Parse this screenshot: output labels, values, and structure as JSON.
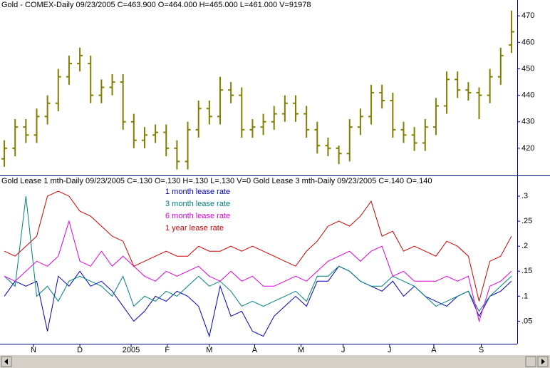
{
  "chart_data": [
    {
      "type": "ohlc",
      "title": "Gold - COMEX-Daily   09/23/2005   C=463.900   O=464.000   H=465.000   L=461.000   V=91978",
      "color": "#808000",
      "xlim": [
        -0.4,
        47.4
      ],
      "ylim": [
        410,
        476
      ],
      "yticks": [
        420,
        430,
        440,
        450,
        460,
        470
      ],
      "open": [
        416,
        420,
        428,
        425,
        432,
        437,
        447,
        452,
        452,
        440,
        443,
        445,
        430,
        423,
        425,
        426,
        420,
        415,
        427,
        435,
        432,
        442,
        440,
        427,
        428,
        430,
        433,
        437,
        433,
        427,
        421,
        420,
        418,
        428,
        432,
        441,
        438,
        427,
        425,
        422,
        428,
        436,
        446,
        442,
        441,
        440,
        447,
        459
      ],
      "high": [
        423,
        431,
        431,
        435,
        440,
        450,
        455,
        458,
        455,
        446,
        448,
        448,
        433,
        428,
        429,
        429,
        423,
        430,
        438,
        438,
        447,
        445,
        443,
        431,
        433,
        436,
        440,
        440,
        436,
        430,
        424,
        421,
        431,
        435,
        444,
        444,
        441,
        430,
        428,
        431,
        439,
        449,
        449,
        445,
        443,
        450,
        458,
        472
      ],
      "low": [
        413,
        417,
        422,
        422,
        429,
        434,
        444,
        449,
        437,
        437,
        440,
        427,
        420,
        420,
        422,
        417,
        412,
        412,
        424,
        429,
        429,
        437,
        424,
        424,
        425,
        427,
        430,
        430,
        424,
        418,
        417,
        414,
        415,
        425,
        429,
        435,
        424,
        422,
        419,
        419,
        425,
        433,
        439,
        438,
        431,
        437,
        444,
        456
      ],
      "close": [
        420,
        428,
        425,
        432,
        437,
        447,
        452,
        455,
        440,
        443,
        445,
        430,
        423,
        425,
        426,
        420,
        415,
        427,
        435,
        432,
        442,
        440,
        427,
        428,
        430,
        433,
        437,
        433,
        427,
        421,
        420,
        418,
        428,
        432,
        441,
        438,
        427,
        425,
        422,
        428,
        436,
        446,
        442,
        441,
        440,
        447,
        455,
        464
      ]
    },
    {
      "type": "line",
      "title": "Gold Lease 1 mth-Daily   09/23/2005   C=.130   O=.130   H=.130   L=.130   V=0   Gold Lease 3 mth-Daily   09/23/2005   C=.140   O=.140",
      "xlim": [
        -0.4,
        47.4
      ],
      "ylim": [
        0.005,
        0.34
      ],
      "yticks": [
        {
          "value": 0.05,
          "label": ".05"
        },
        {
          "value": 0.1,
          "label": ".1"
        },
        {
          "value": 0.15,
          "label": ".15"
        },
        {
          "value": 0.2,
          "label": ".2"
        },
        {
          "value": 0.25,
          "label": ".25"
        },
        {
          "value": 0.3,
          "label": ".3"
        }
      ],
      "xticks": [
        {
          "value": 2.7,
          "label": "N"
        },
        {
          "value": 7.0,
          "label": "D"
        },
        {
          "value": 11.75,
          "label": "2005"
        },
        {
          "value": 15.1,
          "label": "F"
        },
        {
          "value": 19.0,
          "label": "M"
        },
        {
          "value": 23.2,
          "label": "A"
        },
        {
          "value": 27.5,
          "label": "M"
        },
        {
          "value": 31.4,
          "label": "J"
        },
        {
          "value": 35.7,
          "label": "J"
        },
        {
          "value": 39.8,
          "label": "A"
        },
        {
          "value": 44.2,
          "label": "S"
        }
      ],
      "series": [
        {
          "name": "1 month lease rate",
          "color": "#0000c0",
          "values": [
            0.1,
            0.13,
            0.12,
            0.13,
            0.03,
            0.14,
            0.12,
            0.15,
            0.12,
            0.13,
            0.11,
            0.08,
            0.05,
            0.07,
            0.1,
            0.09,
            0.11,
            0.1,
            0.08,
            0.02,
            0.12,
            0.06,
            0.07,
            0.03,
            0.02,
            0.06,
            0.08,
            0.1,
            0.08,
            0.13,
            0.13,
            0.16,
            0.15,
            0.13,
            0.12,
            0.11,
            0.13,
            0.1,
            0.12,
            0.1,
            0.09,
            0.08,
            0.1,
            0.11,
            0.06,
            0.1,
            0.11,
            0.13
          ]
        },
        {
          "name": "3 month lease rate",
          "color": "#008080",
          "values": [
            0.14,
            0.12,
            0.3,
            0.1,
            0.12,
            0.09,
            0.13,
            0.14,
            0.13,
            0.12,
            0.1,
            0.14,
            0.08,
            0.1,
            0.09,
            0.11,
            0.1,
            0.12,
            0.14,
            0.12,
            0.13,
            0.11,
            0.08,
            0.09,
            0.08,
            0.09,
            0.1,
            0.11,
            0.09,
            0.14,
            0.14,
            0.16,
            0.15,
            0.13,
            0.12,
            0.12,
            0.14,
            0.13,
            0.12,
            0.1,
            0.08,
            0.09,
            0.1,
            0.11,
            0.07,
            0.1,
            0.12,
            0.14
          ]
        },
        {
          "name": "6 month lease rate",
          "color": "#e000e0",
          "values": [
            0.14,
            0.13,
            0.15,
            0.17,
            0.16,
            0.18,
            0.25,
            0.17,
            0.16,
            0.19,
            0.16,
            0.18,
            0.16,
            0.14,
            0.13,
            0.15,
            0.14,
            0.15,
            0.16,
            0.14,
            0.13,
            0.15,
            0.13,
            0.14,
            0.12,
            0.12,
            0.13,
            0.14,
            0.13,
            0.15,
            0.17,
            0.18,
            0.19,
            0.17,
            0.19,
            0.2,
            0.14,
            0.15,
            0.13,
            0.13,
            0.13,
            0.14,
            0.13,
            0.14,
            0.05,
            0.12,
            0.13,
            0.15
          ]
        },
        {
          "name": "1 year lease rate",
          "color": "#d00000",
          "values": [
            0.19,
            0.18,
            0.2,
            0.22,
            0.3,
            0.31,
            0.3,
            0.27,
            0.26,
            0.24,
            0.22,
            0.21,
            0.16,
            0.17,
            0.18,
            0.19,
            0.18,
            0.18,
            0.2,
            0.19,
            0.19,
            0.2,
            0.19,
            0.2,
            0.19,
            0.18,
            0.17,
            0.16,
            0.19,
            0.21,
            0.24,
            0.25,
            0.24,
            0.26,
            0.29,
            0.22,
            0.23,
            0.19,
            0.2,
            0.19,
            0.18,
            0.21,
            0.2,
            0.18,
            0.09,
            0.17,
            0.18,
            0.22
          ]
        }
      ]
    }
  ]
}
